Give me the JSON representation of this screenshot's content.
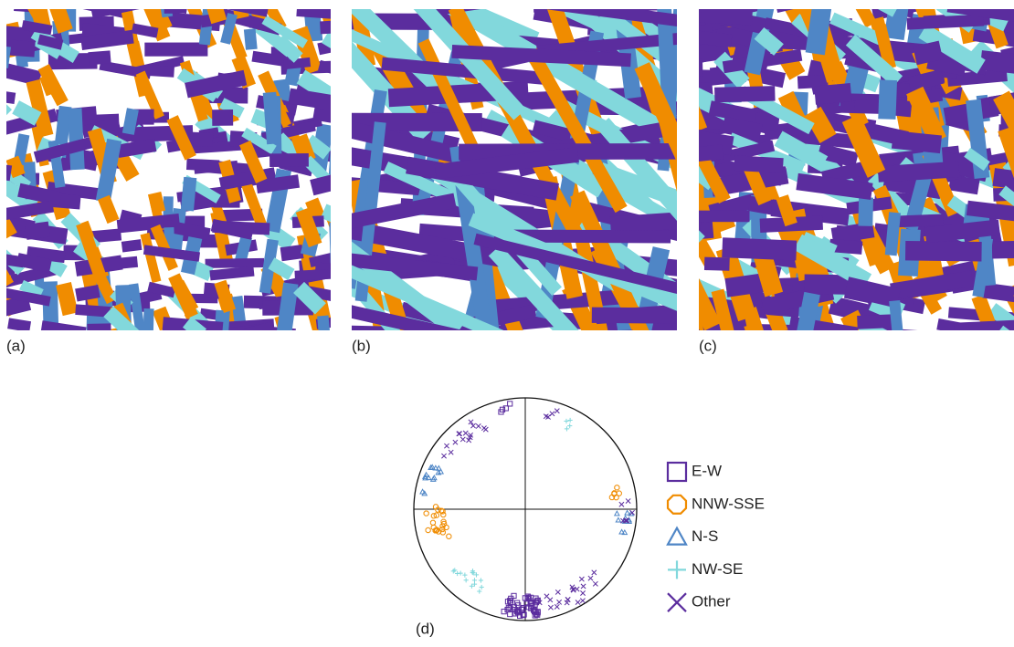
{
  "panels": [
    {
      "label": "(a)"
    },
    {
      "label": "(b)"
    },
    {
      "label": "(c)"
    }
  ],
  "colors": {
    "E-W": "#5b2d9e",
    "NNW-SSE": "#f08c00",
    "N-S": "#4f86c6",
    "NW-SE": "#82d8dc"
  },
  "stereonet": {
    "label": "(d)",
    "legend": [
      {
        "name": "E-W",
        "marker": "square",
        "color": "#5b2d9e"
      },
      {
        "name": "NNW-SSE",
        "marker": "octagon",
        "color": "#f08c00"
      },
      {
        "name": "N-S",
        "marker": "triangle",
        "color": "#4f86c6"
      },
      {
        "name": "NW-SE",
        "marker": "plus",
        "color": "#82d8dc"
      },
      {
        "name": "Other",
        "marker": "cross",
        "color": "#5b2d9e"
      }
    ]
  }
}
